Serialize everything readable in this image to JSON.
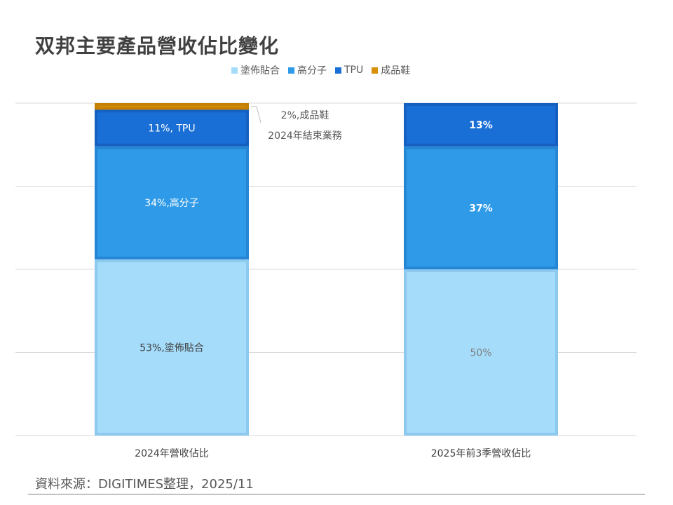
{
  "chart_data": {
    "type": "bar",
    "stacked": true,
    "title": "双邦主要產品營收佔比變化",
    "categories": [
      "2024年營收佔比",
      "2025年前3季營收佔比"
    ],
    "ylim": [
      0,
      100
    ],
    "grid": true,
    "legend_position": "top",
    "series": [
      {
        "name": "塗佈貼合",
        "color": "#a5dcfa",
        "values": [
          53,
          50
        ],
        "labels": [
          "53%,塗佈貼合",
          "50%"
        ],
        "label_color": [
          "#404040",
          "#7f7f7f"
        ],
        "label_bold": [
          false,
          false
        ]
      },
      {
        "name": "高分子",
        "color": "#2e9ae8",
        "values": [
          34,
          37
        ],
        "labels": [
          "34%,高分子",
          "37%"
        ],
        "label_color": [
          "#ffffff",
          "#ffffff"
        ],
        "label_bold": [
          false,
          true
        ]
      },
      {
        "name": "TPU",
        "color": "#1a6fd6",
        "values": [
          11,
          13
        ],
        "labels": [
          "11%, TPU",
          "13%"
        ],
        "label_color": [
          "#ffffff",
          "#ffffff"
        ],
        "label_bold": [
          false,
          true
        ]
      },
      {
        "name": "成品鞋",
        "color": "#d99008",
        "values": [
          2,
          0
        ],
        "labels": [
          "",
          ""
        ],
        "label_color": [
          "#404040",
          "#404040"
        ],
        "label_bold": [
          false,
          false
        ]
      }
    ],
    "annotations": [
      "2%,成品鞋",
      "2024年結束業務"
    ]
  },
  "source": "資料來源：DIGITIMES整理，2025/11"
}
